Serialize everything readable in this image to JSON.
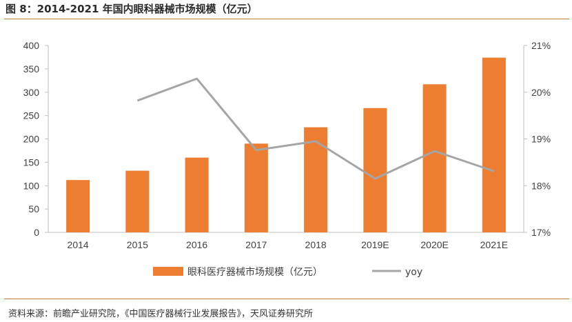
{
  "header": {
    "title": "图 8：2014-2021 年国内眼科器械市场规模（亿元）"
  },
  "footer": {
    "source": "资料来源：前瞻产业研究院，《中国医疗器械行业发展报告》，天风证券研究所"
  },
  "colors": {
    "bar": "#ED7D31",
    "line": "#A5A5A5",
    "rule": "#C07A33"
  },
  "chart_data": {
    "type": "bar",
    "categories": [
      "2014",
      "2015",
      "2016",
      "2017",
      "2018",
      "2019E",
      "2020E",
      "2021E"
    ],
    "series": [
      {
        "name": "眼科医疗器械市场规模（亿元）",
        "type": "bar",
        "axis": "left",
        "values": [
          112,
          132,
          160,
          190,
          225,
          266,
          317,
          374
        ]
      },
      {
        "name": "yoy",
        "type": "line",
        "axis": "right",
        "values": [
          null,
          19.82,
          20.29,
          18.76,
          18.95,
          18.15,
          18.74,
          18.31
        ]
      }
    ],
    "ylim": [
      0,
      400
    ],
    "y_ticks": [
      "0",
      "50",
      "100",
      "150",
      "200",
      "250",
      "300",
      "350",
      "400"
    ],
    "y2lim": [
      17,
      21
    ],
    "y2_ticks": [
      "17%",
      "18%",
      "19%",
      "20%",
      "21%"
    ],
    "legend_position": "bottom",
    "grid": false
  }
}
